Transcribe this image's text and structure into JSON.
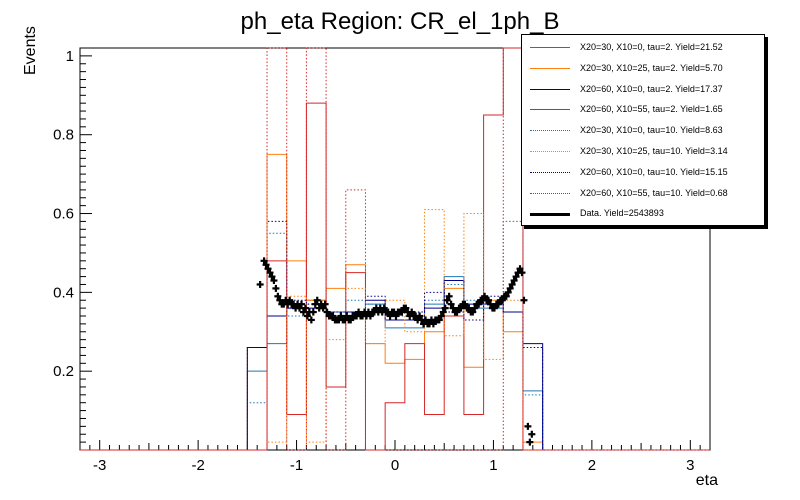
{
  "chart_data": {
    "type": "histogram",
    "title": "ph_eta Region: CR_el_1ph_B",
    "xlabel": "eta",
    "ylabel": "Events",
    "xlim": [
      -3.2,
      3.2
    ],
    "ylim": [
      0,
      1.02
    ],
    "x_ticks": [
      -3,
      -2,
      -1,
      0,
      1,
      2,
      3
    ],
    "y_ticks": [
      0.2,
      0.4,
      0.6,
      0.8,
      1
    ],
    "bin_edges": [
      -1.5,
      -1.3,
      -1.1,
      -0.9,
      -0.7,
      -0.5,
      -0.3,
      -0.1,
      0.1,
      0.3,
      0.5,
      0.7,
      0.9,
      1.1,
      1.3,
      1.5
    ],
    "series": [
      {
        "name": "X20=30, X10=0, tau=2. Yield=21.52",
        "color": "#1f77b4",
        "style": "solid",
        "values": [
          0.2,
          0.27,
          0.36,
          0.38,
          0.35,
          0.35,
          0.37,
          0.31,
          0.31,
          0.37,
          0.44,
          0.36,
          0.36,
          0.35,
          0.15
        ]
      },
      {
        "name": "X20=30, X10=25, tau=2. Yield=5.70",
        "color": "#ff7f0e",
        "style": "solid",
        "values": [
          0.26,
          0.75,
          0.48,
          0.38,
          0.41,
          0.47,
          0.27,
          0.22,
          0.23,
          0.3,
          0.41,
          0.21,
          0.38,
          0.3,
          0.02
        ]
      },
      {
        "name": "X20=60, X10=0, tau=2. Yield=17.37",
        "color": "#00008b",
        "style": "solid",
        "values": [
          0.26,
          0.34,
          0.36,
          0.36,
          0.35,
          0.35,
          0.38,
          0.33,
          0.33,
          0.36,
          0.43,
          0.37,
          0.37,
          0.35,
          0.27
        ]
      },
      {
        "name": "X20=60, X10=55, tau=2. Yield=1.65",
        "color": "#d62728",
        "style": "solid",
        "values": [
          0.0,
          0.48,
          0.09,
          0.88,
          0.16,
          0.45,
          0.0,
          0.12,
          0.27,
          0.09,
          0.34,
          0.09,
          0.85,
          1.1,
          0.0
        ]
      },
      {
        "name": "X20=30, X10=0, tau=10. Yield=8.63",
        "color": "#1f77b4",
        "style": "dotted",
        "values": [
          0.12,
          0.55,
          0.34,
          0.37,
          0.35,
          0.38,
          0.37,
          0.34,
          0.34,
          0.38,
          0.42,
          0.38,
          0.37,
          0.58,
          0.14
        ]
      },
      {
        "name": "X20=30, X10=25, tau=10. Yield=3.14",
        "color": "#ff7f0e",
        "style": "dotted",
        "values": [
          0.26,
          0.02,
          0.39,
          0.02,
          0.28,
          0.41,
          0.27,
          0.38,
          0.3,
          0.61,
          0.29,
          0.6,
          0.23,
          0.38,
          0.0
        ]
      },
      {
        "name": "X20=60, X10=0, tau=10. Yield=15.15",
        "color": "#00008b",
        "style": "dotted",
        "values": [
          0.26,
          0.58,
          0.38,
          0.37,
          0.34,
          0.35,
          0.39,
          0.35,
          0.35,
          0.4,
          0.35,
          0.33,
          0.39,
          0.35,
          0.26
        ]
      },
      {
        "name": "X20=60, X10=55, tau=10. Yield=0.68",
        "color": "#d62728",
        "style": "dotted",
        "values": [
          0.0,
          1.1,
          0.0,
          1.1,
          0.0,
          0.66,
          0.0,
          0.0,
          0.0,
          0.0,
          0.0,
          0.0,
          0.0,
          1.1,
          0.0
        ]
      }
    ],
    "data": {
      "name": "Data. Yield=2543893",
      "color": "#000000",
      "x": [
        -1.37,
        -1.33,
        -1.31,
        -1.29,
        -1.27,
        -1.25,
        -1.23,
        -1.21,
        -1.19,
        -1.17,
        -1.15,
        -1.13,
        -1.11,
        -1.09,
        -1.07,
        -1.05,
        -1.03,
        -1.01,
        -0.99,
        -0.97,
        -0.95,
        -0.93,
        -0.91,
        -0.89,
        -0.87,
        -0.85,
        -0.83,
        -0.81,
        -0.79,
        -0.77,
        -0.75,
        -0.73,
        -0.71,
        -0.69,
        -0.67,
        -0.65,
        -0.63,
        -0.61,
        -0.59,
        -0.57,
        -0.55,
        -0.53,
        -0.51,
        -0.49,
        -0.47,
        -0.45,
        -0.43,
        -0.41,
        -0.39,
        -0.37,
        -0.35,
        -0.33,
        -0.31,
        -0.29,
        -0.27,
        -0.25,
        -0.23,
        -0.21,
        -0.19,
        -0.17,
        -0.15,
        -0.13,
        -0.11,
        -0.09,
        -0.07,
        -0.05,
        -0.03,
        -0.01,
        0.01,
        0.03,
        0.05,
        0.07,
        0.09,
        0.11,
        0.13,
        0.15,
        0.17,
        0.19,
        0.21,
        0.23,
        0.25,
        0.27,
        0.29,
        0.31,
        0.33,
        0.35,
        0.37,
        0.39,
        0.41,
        0.43,
        0.45,
        0.47,
        0.49,
        0.51,
        0.53,
        0.55,
        0.57,
        0.59,
        0.61,
        0.63,
        0.65,
        0.67,
        0.69,
        0.71,
        0.73,
        0.75,
        0.77,
        0.79,
        0.81,
        0.83,
        0.85,
        0.87,
        0.89,
        0.91,
        0.93,
        0.95,
        0.97,
        0.99,
        1.01,
        1.03,
        1.05,
        1.07,
        1.09,
        1.11,
        1.13,
        1.15,
        1.17,
        1.19,
        1.21,
        1.23,
        1.25,
        1.27,
        1.29,
        1.31,
        1.35,
        1.37,
        1.39
      ],
      "y": [
        0.42,
        0.48,
        0.47,
        0.46,
        0.45,
        0.44,
        0.43,
        0.41,
        0.39,
        0.38,
        0.37,
        0.37,
        0.38,
        0.37,
        0.38,
        0.37,
        0.37,
        0.36,
        0.37,
        0.36,
        0.37,
        0.35,
        0.36,
        0.34,
        0.35,
        0.33,
        0.35,
        0.37,
        0.38,
        0.36,
        0.37,
        0.36,
        0.37,
        0.35,
        0.34,
        0.34,
        0.34,
        0.33,
        0.33,
        0.33,
        0.34,
        0.33,
        0.33,
        0.34,
        0.33,
        0.33,
        0.34,
        0.34,
        0.34,
        0.35,
        0.34,
        0.34,
        0.35,
        0.34,
        0.35,
        0.34,
        0.35,
        0.35,
        0.36,
        0.35,
        0.36,
        0.35,
        0.36,
        0.35,
        0.35,
        0.34,
        0.35,
        0.35,
        0.34,
        0.35,
        0.35,
        0.35,
        0.36,
        0.36,
        0.35,
        0.34,
        0.35,
        0.34,
        0.34,
        0.33,
        0.34,
        0.33,
        0.32,
        0.33,
        0.32,
        0.32,
        0.33,
        0.32,
        0.33,
        0.33,
        0.33,
        0.34,
        0.35,
        0.36,
        0.38,
        0.39,
        0.37,
        0.36,
        0.35,
        0.35,
        0.36,
        0.36,
        0.37,
        0.37,
        0.36,
        0.36,
        0.35,
        0.35,
        0.36,
        0.37,
        0.37,
        0.38,
        0.38,
        0.39,
        0.38,
        0.38,
        0.37,
        0.36,
        0.36,
        0.37,
        0.37,
        0.38,
        0.38,
        0.39,
        0.39,
        0.4,
        0.41,
        0.42,
        0.43,
        0.44,
        0.45,
        0.46,
        0.45,
        0.38,
        0.06,
        0.02,
        0.04
      ]
    },
    "legend": "top-right",
    "grid": false
  }
}
